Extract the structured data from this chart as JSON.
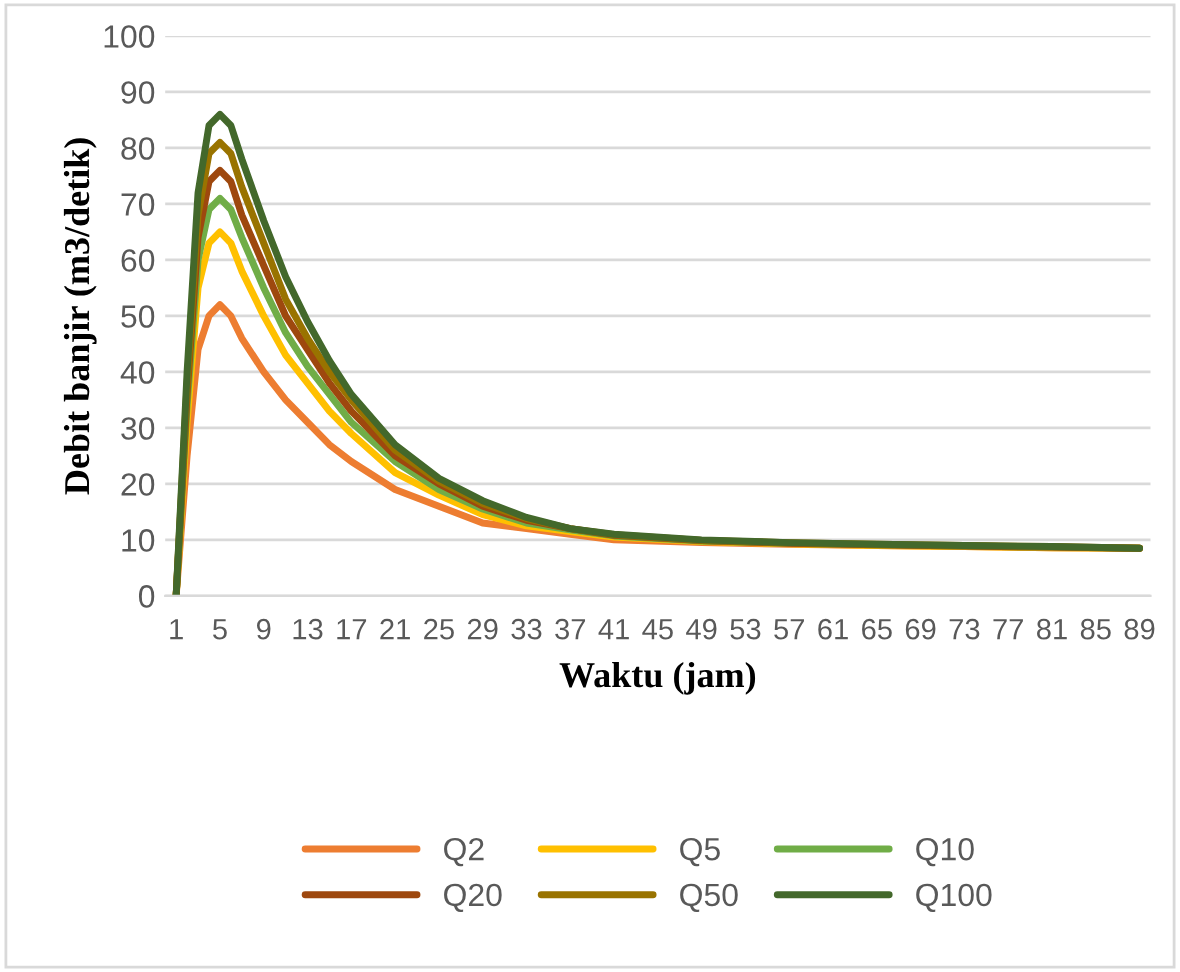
{
  "chart_data": {
    "type": "line",
    "xlabel": "Waktu (jam)",
    "ylabel": "Debit banjir (m3/detik)",
    "xlim": [
      0,
      90
    ],
    "xticks": [
      1,
      5,
      9,
      13,
      17,
      21,
      25,
      29,
      33,
      37,
      41,
      45,
      49,
      53,
      57,
      61,
      65,
      69,
      73,
      77,
      81,
      85,
      89
    ],
    "ylim": [
      0,
      100
    ],
    "yticks": [
      0,
      10,
      20,
      30,
      40,
      50,
      60,
      70,
      80,
      90,
      100
    ],
    "grid": "y",
    "legend": "bottom",
    "marker": "none",
    "line_style": "solid",
    "x": [
      1,
      2,
      3,
      4,
      5,
      6,
      7,
      9,
      11,
      13,
      15,
      17,
      21,
      25,
      29,
      33,
      37,
      41,
      49,
      57,
      65,
      73,
      81,
      89
    ],
    "series": [
      {
        "name": "Q2",
        "color": "#ed7d31",
        "values": [
          0,
          25,
          44,
          50,
          52,
          50,
          46,
          40,
          35,
          31,
          27,
          24,
          19,
          16,
          13,
          12,
          11,
          10,
          9.5,
          9.2,
          9,
          8.8,
          8.6,
          8.5
        ]
      },
      {
        "name": "Q5",
        "color": "#ffc000",
        "values": [
          0,
          31,
          55,
          63,
          65,
          63,
          58,
          50,
          43,
          38,
          33,
          29,
          22,
          18,
          14.5,
          12.5,
          11.5,
          10.5,
          9.7,
          9.3,
          9,
          8.8,
          8.6,
          8.5
        ]
      },
      {
        "name": "Q10",
        "color": "#70ad47",
        "values": [
          0,
          34,
          60,
          69,
          71,
          69,
          64,
          55,
          47,
          41,
          36,
          31,
          24,
          19,
          15.5,
          13,
          11.8,
          10.7,
          9.8,
          9.4,
          9.1,
          8.9,
          8.7,
          8.5
        ]
      },
      {
        "name": "Q20",
        "color": "#9e480e",
        "values": [
          0,
          36,
          64,
          74,
          76,
          74,
          68,
          59,
          50,
          44,
          38,
          33,
          25,
          20,
          16,
          13.5,
          12,
          10.8,
          9.9,
          9.4,
          9.1,
          8.9,
          8.7,
          8.5
        ]
      },
      {
        "name": "Q50",
        "color": "#997300",
        "values": [
          0,
          38,
          68,
          79,
          81,
          79,
          73,
          63,
          53,
          46,
          40,
          35,
          26,
          20.5,
          16.5,
          13.8,
          12,
          10.9,
          9.9,
          9.5,
          9.2,
          9,
          8.8,
          8.5
        ]
      },
      {
        "name": "Q100",
        "color": "#43682b",
        "values": [
          0,
          40,
          72,
          84,
          86,
          84,
          78,
          67,
          57,
          49,
          42,
          36,
          27,
          21,
          17,
          14,
          12,
          11,
          10,
          9.5,
          9.2,
          9,
          8.8,
          8.5
        ]
      }
    ]
  }
}
